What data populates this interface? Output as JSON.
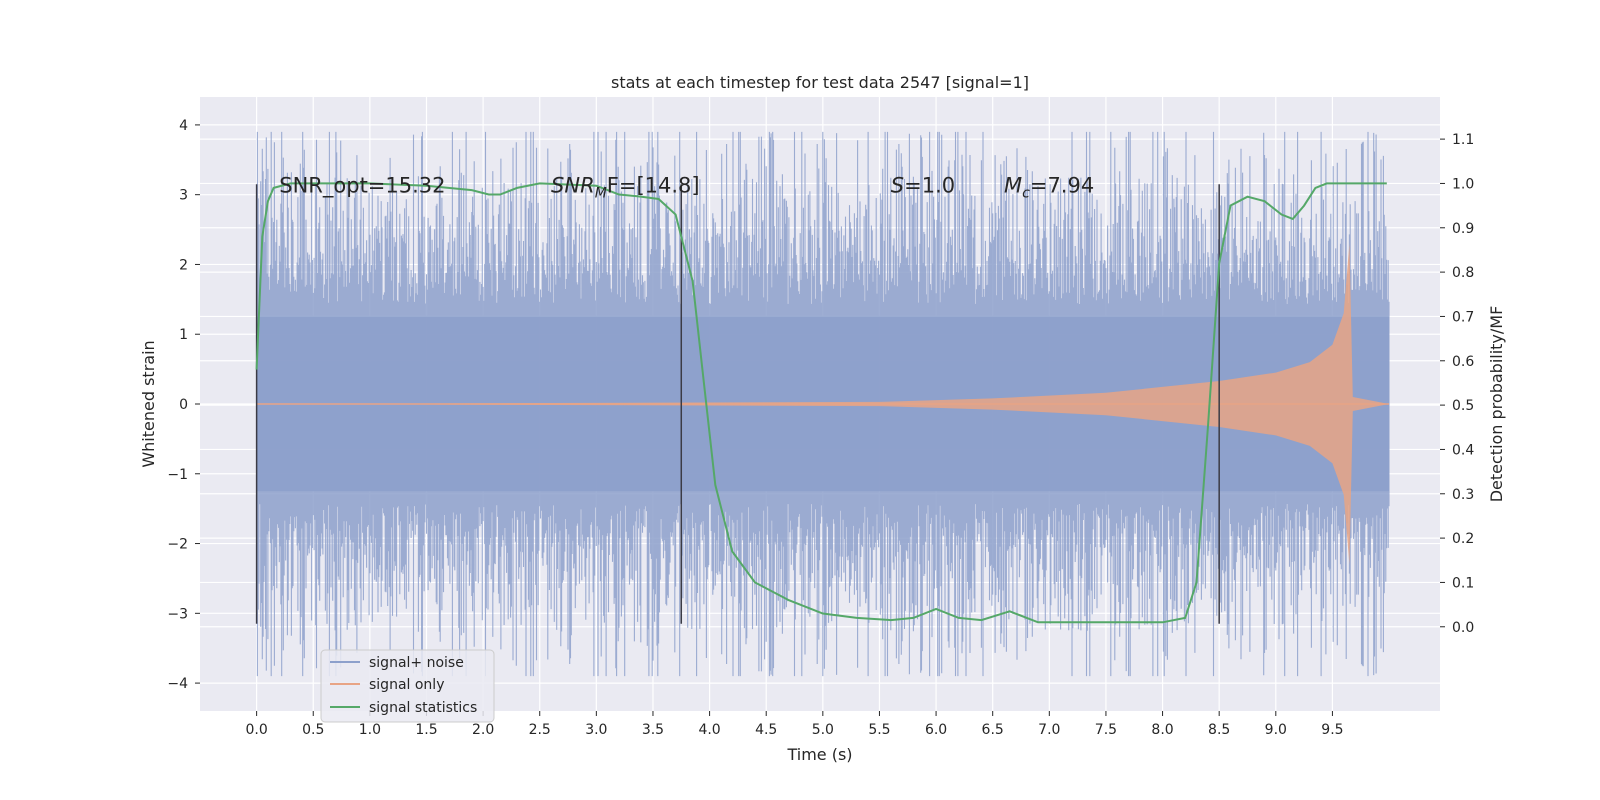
{
  "chart_data": {
    "type": "line",
    "title": "stats at each timestep for test data 2547 [signal=1]",
    "xlabel": "Time (s)",
    "ylabel": "Whitened strain",
    "y2label": "Detection probability/MF",
    "xlim": [
      -0.5,
      10.45
    ],
    "ylim": [
      -4.4,
      4.4
    ],
    "y2lim": [
      -0.19,
      1.195
    ],
    "x_ticks": [
      0.0,
      0.5,
      1.0,
      1.5,
      2.0,
      2.5,
      3.0,
      3.5,
      4.0,
      4.5,
      5.0,
      5.5,
      6.0,
      6.5,
      7.0,
      7.5,
      8.0,
      8.5,
      9.0,
      9.5
    ],
    "x_tick_labels": [
      "0.0",
      "0.5",
      "1.0",
      "1.5",
      "2.0",
      "2.5",
      "3.0",
      "3.5",
      "4.0",
      "4.5",
      "5.0",
      "5.5",
      "6.0",
      "6.5",
      "7.0",
      "7.5",
      "8.0",
      "8.5",
      "9.0",
      "9.5"
    ],
    "y_ticks": [
      -4,
      -3,
      -2,
      -1,
      0,
      1,
      2,
      3,
      4
    ],
    "y_tick_labels": [
      "−4",
      "−3",
      "−2",
      "−1",
      "0",
      "1",
      "2",
      "3",
      "4"
    ],
    "y2_ticks": [
      0.0,
      0.1,
      0.2,
      0.3,
      0.4,
      0.5,
      0.6,
      0.7,
      0.8,
      0.9,
      1.0,
      1.1
    ],
    "y2_tick_labels": [
      "0.0",
      "0.1",
      "0.2",
      "0.3",
      "0.4",
      "0.5",
      "0.6",
      "0.7",
      "0.8",
      "0.9",
      "1.0",
      "1.1"
    ],
    "grid": true,
    "legend": {
      "position": "lower-left",
      "entries": [
        {
          "label": "signal+ noise",
          "color": "#8da0cb"
        },
        {
          "label": "signal only",
          "color": "#e8a485"
        },
        {
          "label": "signal statistics",
          "color": "#55a868"
        }
      ]
    },
    "annotations": [
      {
        "x": 0.2,
        "y": 3.13,
        "base": "SNR_opt=15.32",
        "sub": "",
        "rest": ""
      },
      {
        "x": 2.6,
        "y": 3.13,
        "base": "SNR",
        "sub": "M",
        "rest": "F=[14.8]"
      },
      {
        "x": 5.6,
        "y": 3.13,
        "base": "S",
        "sub": "",
        "rest": "=1.0"
      },
      {
        "x": 6.6,
        "y": 3.13,
        "base": "M",
        "sub": "c",
        "rest": "=7.94"
      }
    ],
    "vertical_markers": [
      {
        "x": 0.0,
        "y_range": [
          -3.15,
          3.15
        ]
      },
      {
        "x": 3.75,
        "y_range": [
          -3.15,
          3.15
        ]
      },
      {
        "x": 8.5,
        "y_range": [
          -3.15,
          3.15
        ]
      }
    ],
    "series": [
      {
        "name": "signal+ noise",
        "color": "#8da0cb",
        "style": "noise",
        "x_range": [
          0.0,
          10.0
        ],
        "amplitude": 2.6
      },
      {
        "name": "signal only",
        "color": "#e8a485",
        "style": "chirp",
        "envelope": [
          {
            "x": 0.0,
            "y": 0.0
          },
          {
            "x": 5.5,
            "y": 0.03
          },
          {
            "x": 6.5,
            "y": 0.08
          },
          {
            "x": 7.5,
            "y": 0.16
          },
          {
            "x": 8.5,
            "y": 0.33
          },
          {
            "x": 9.0,
            "y": 0.45
          },
          {
            "x": 9.3,
            "y": 0.6
          },
          {
            "x": 9.5,
            "y": 0.85
          },
          {
            "x": 9.6,
            "y": 1.3
          },
          {
            "x": 9.65,
            "y": 2.3
          },
          {
            "x": 9.68,
            "y": 0.1
          },
          {
            "x": 10.0,
            "y": 0.0
          }
        ]
      },
      {
        "name": "signal statistics",
        "color": "#55a868",
        "style": "line",
        "axis": "y2",
        "x": [
          0.0,
          0.05,
          0.1,
          0.15,
          0.3,
          0.6,
          1.0,
          1.5,
          1.9,
          2.05,
          2.15,
          2.3,
          2.5,
          3.0,
          3.2,
          3.4,
          3.55,
          3.7,
          3.85,
          3.95,
          4.05,
          4.2,
          4.4,
          4.7,
          5.0,
          5.3,
          5.6,
          5.8,
          6.0,
          6.2,
          6.4,
          6.65,
          6.9,
          7.2,
          7.6,
          8.0,
          8.2,
          8.3,
          8.4,
          8.5,
          8.6,
          8.75,
          8.9,
          9.05,
          9.15,
          9.25,
          9.35,
          9.45,
          9.6,
          9.8,
          9.98
        ],
        "y": [
          0.58,
          0.88,
          0.96,
          0.99,
          1.0,
          1.0,
          1.0,
          0.995,
          0.985,
          0.975,
          0.975,
          0.99,
          1.0,
          0.995,
          0.975,
          0.97,
          0.965,
          0.93,
          0.78,
          0.55,
          0.32,
          0.17,
          0.1,
          0.06,
          0.03,
          0.02,
          0.015,
          0.02,
          0.04,
          0.02,
          0.015,
          0.035,
          0.01,
          0.01,
          0.01,
          0.01,
          0.02,
          0.1,
          0.45,
          0.82,
          0.95,
          0.97,
          0.96,
          0.93,
          0.92,
          0.95,
          0.99,
          1.0,
          1.0,
          1.0,
          1.0
        ]
      }
    ]
  }
}
